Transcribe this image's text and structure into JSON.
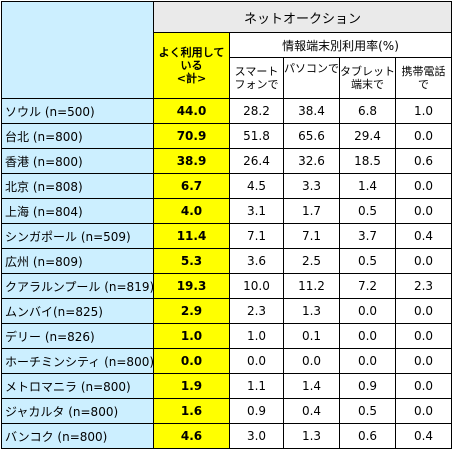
{
  "header": {
    "category": "ネットオークション",
    "rate_label_lines": [
      "よく利用して",
      "いる",
      "<計>"
    ],
    "device_group": "情報端末別利用率(%)",
    "devices": [
      [
        "スマート",
        "フォンで"
      ],
      [
        "パソコンで",
        ""
      ],
      [
        "タブレット",
        "端末で"
      ],
      [
        "携帯電話",
        "で"
      ]
    ]
  },
  "rows": [
    {
      "city": "ソウル (n=500)",
      "rate": "44.0",
      "v": [
        "28.2",
        "38.4",
        "6.8",
        "1.0"
      ]
    },
    {
      "city": "台北 (n=800)",
      "rate": "70.9",
      "v": [
        "51.8",
        "65.6",
        "29.4",
        "0.0"
      ]
    },
    {
      "city": "香港 (n=800)",
      "rate": "38.9",
      "v": [
        "26.4",
        "32.6",
        "18.5",
        "0.6"
      ]
    },
    {
      "city": "北京 (n=808)",
      "rate": "6.7",
      "v": [
        "4.5",
        "3.3",
        "1.4",
        "0.0"
      ]
    },
    {
      "city": "上海 (n=804)",
      "rate": "4.0",
      "v": [
        "3.1",
        "1.7",
        "0.5",
        "0.0"
      ]
    },
    {
      "city": "シンガポール (n=509)",
      "rate": "11.4",
      "v": [
        "7.1",
        "7.1",
        "3.7",
        "0.4"
      ]
    },
    {
      "city": "広州 (n=809)",
      "rate": "5.3",
      "v": [
        "3.6",
        "2.5",
        "0.5",
        "0.0"
      ]
    },
    {
      "city": "クアラルンプール (n=819)",
      "rate": "19.3",
      "v": [
        "10.0",
        "11.2",
        "7.2",
        "2.3"
      ]
    },
    {
      "city": "ムンバイ(n=825)",
      "rate": "2.9",
      "v": [
        "2.3",
        "1.3",
        "0.0",
        "0.0"
      ]
    },
    {
      "city": "デリー (n=826)",
      "rate": "1.0",
      "v": [
        "1.0",
        "0.1",
        "0.0",
        "0.0"
      ]
    },
    {
      "city": "ホーチミンシティ (n=800)",
      "rate": "0.0",
      "v": [
        "0.0",
        "0.0",
        "0.0",
        "0.0"
      ]
    },
    {
      "city": "メトロマニラ (n=800)",
      "rate": "1.9",
      "v": [
        "1.1",
        "1.4",
        "0.9",
        "0.0"
      ]
    },
    {
      "city": "ジャカルタ (n=800)",
      "rate": "1.6",
      "v": [
        "0.9",
        "0.4",
        "0.5",
        "0.0"
      ]
    },
    {
      "city": "バンコク (n=800)",
      "rate": "4.6",
      "v": [
        "3.0",
        "1.3",
        "0.6",
        "0.4"
      ]
    }
  ]
}
